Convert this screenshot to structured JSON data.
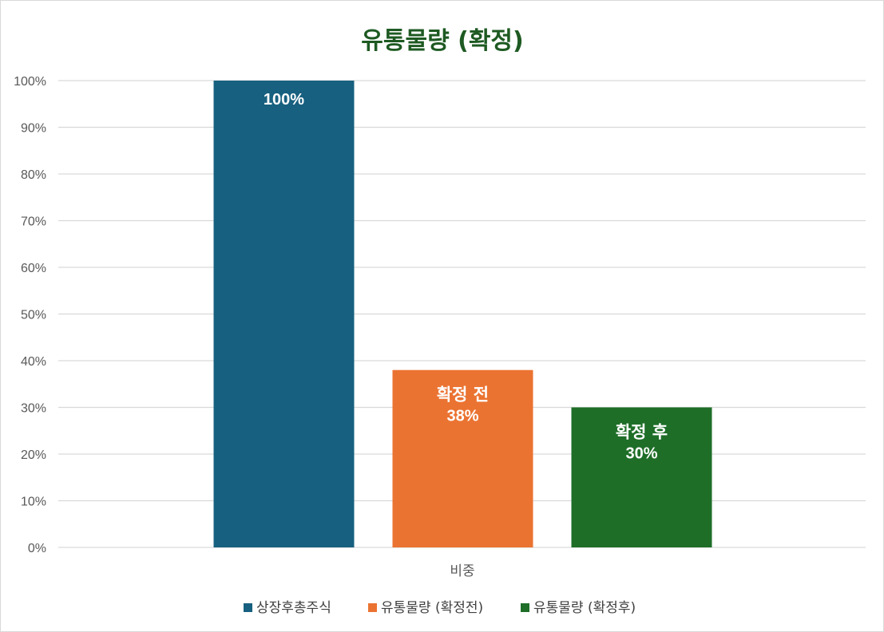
{
  "chart_data": {
    "type": "bar",
    "title": "유통물량 (확정)",
    "categories": [
      "비중"
    ],
    "series": [
      {
        "name": "상장후총주식",
        "values": [
          100
        ],
        "color": "#17607f",
        "bar_label": "",
        "value_label": "100%"
      },
      {
        "name": "유통물량 (확정전)",
        "values": [
          38
        ],
        "color": "#eb7331",
        "bar_label": "확정 전",
        "value_label": "38%"
      },
      {
        "name": "유통물량 (확정후)",
        "values": [
          30
        ],
        "color": "#1e6e28",
        "bar_label": "확정 후",
        "value_label": "30%"
      }
    ],
    "ylim": [
      0,
      100
    ],
    "y_ticks": [
      "0%",
      "10%",
      "20%",
      "30%",
      "40%",
      "50%",
      "60%",
      "70%",
      "80%",
      "90%",
      "100%"
    ],
    "grid": true,
    "legend_position": "bottom",
    "xlabel": "",
    "ylabel": ""
  },
  "colors": {
    "title": "#1e5a22",
    "grid": "#d9d9d9",
    "tick_text": "#595959"
  }
}
